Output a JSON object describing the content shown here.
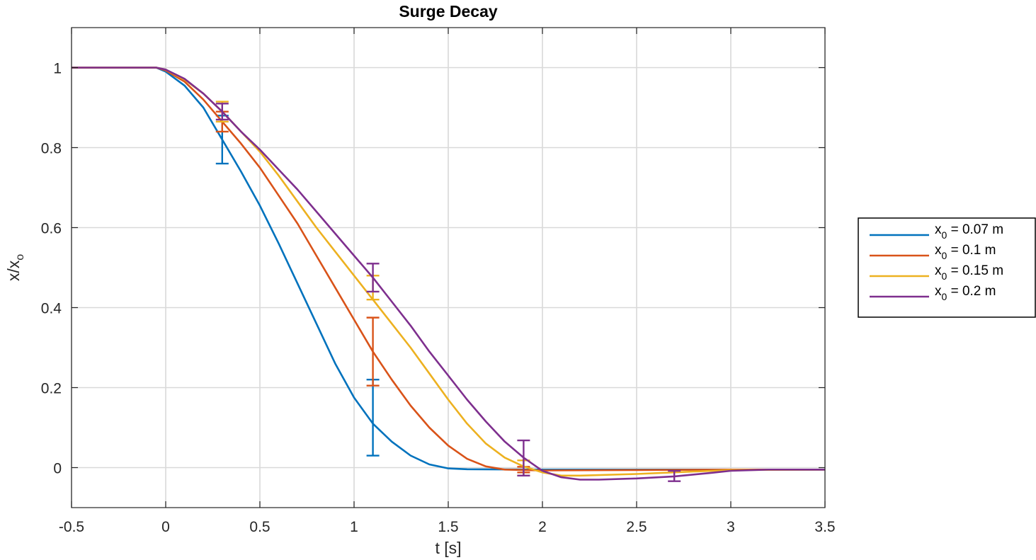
{
  "chart_data": {
    "type": "line",
    "title": "Surge Decay",
    "xlabel": "t [s]",
    "ylabel": {
      "base": "x/x",
      "sub": "o"
    },
    "xlim": [
      -0.5,
      3.5
    ],
    "ylim": [
      -0.1,
      1.1
    ],
    "xticks": [
      "-0.5",
      "0",
      "0.5",
      "1",
      "1.5",
      "2",
      "2.5",
      "3",
      "3.5"
    ],
    "yticks": [
      "0",
      "0.2",
      "0.4",
      "0.6",
      "0.8",
      "1"
    ],
    "grid": true,
    "legend_placement": "outside-right",
    "series": [
      {
        "name": {
          "base": "x",
          "sub": "0",
          "rest": " = 0.07 m"
        },
        "color": "#0072BD",
        "points": [
          [
            -0.5,
            1
          ],
          [
            -0.05,
            1
          ],
          [
            0,
            0.99
          ],
          [
            0.1,
            0.955
          ],
          [
            0.2,
            0.9
          ],
          [
            0.3,
            0.82
          ],
          [
            0.4,
            0.74
          ],
          [
            0.5,
            0.655
          ],
          [
            0.6,
            0.56
          ],
          [
            0.7,
            0.46
          ],
          [
            0.8,
            0.36
          ],
          [
            0.9,
            0.26
          ],
          [
            1.0,
            0.175
          ],
          [
            1.1,
            0.11
          ],
          [
            1.2,
            0.065
          ],
          [
            1.3,
            0.03
          ],
          [
            1.4,
            0.008
          ],
          [
            1.5,
            -0.002
          ],
          [
            1.6,
            -0.004
          ],
          [
            2.0,
            -0.005
          ],
          [
            3.0,
            -0.005
          ],
          [
            3.5,
            -0.005
          ]
        ],
        "errorbars": [
          {
            "x": 0.3,
            "lo": 0.76,
            "hi": 0.88
          },
          {
            "x": 1.1,
            "lo": 0.03,
            "hi": 0.22
          }
        ]
      },
      {
        "name": {
          "base": "x",
          "sub": "0",
          "rest": " = 0.1 m"
        },
        "color": "#D95319",
        "points": [
          [
            -0.5,
            1
          ],
          [
            -0.05,
            1
          ],
          [
            0,
            0.993
          ],
          [
            0.1,
            0.965
          ],
          [
            0.2,
            0.92
          ],
          [
            0.3,
            0.865
          ],
          [
            0.4,
            0.81
          ],
          [
            0.5,
            0.75
          ],
          [
            0.6,
            0.68
          ],
          [
            0.7,
            0.61
          ],
          [
            0.8,
            0.53
          ],
          [
            0.9,
            0.45
          ],
          [
            1.0,
            0.37
          ],
          [
            1.1,
            0.29
          ],
          [
            1.2,
            0.22
          ],
          [
            1.3,
            0.155
          ],
          [
            1.4,
            0.1
          ],
          [
            1.5,
            0.055
          ],
          [
            1.6,
            0.022
          ],
          [
            1.7,
            0.003
          ],
          [
            1.8,
            -0.005
          ],
          [
            2.0,
            -0.007
          ],
          [
            2.5,
            -0.006
          ],
          [
            3.0,
            -0.005
          ],
          [
            3.5,
            -0.005
          ]
        ],
        "errorbars": [
          {
            "x": 0.3,
            "lo": 0.84,
            "hi": 0.89
          },
          {
            "x": 1.1,
            "lo": 0.205,
            "hi": 0.375
          },
          {
            "x": 1.9,
            "lo": -0.012,
            "hi": 0.002
          }
        ]
      },
      {
        "name": {
          "base": "x",
          "sub": "0",
          "rest": " = 0.15 m"
        },
        "color": "#EDB120",
        "points": [
          [
            -0.5,
            1
          ],
          [
            -0.05,
            1
          ],
          [
            0,
            0.995
          ],
          [
            0.1,
            0.97
          ],
          [
            0.2,
            0.935
          ],
          [
            0.3,
            0.89
          ],
          [
            0.4,
            0.84
          ],
          [
            0.5,
            0.79
          ],
          [
            0.6,
            0.73
          ],
          [
            0.7,
            0.665
          ],
          [
            0.8,
            0.6
          ],
          [
            0.9,
            0.54
          ],
          [
            1.0,
            0.48
          ],
          [
            1.1,
            0.42
          ],
          [
            1.2,
            0.36
          ],
          [
            1.3,
            0.3
          ],
          [
            1.4,
            0.235
          ],
          [
            1.5,
            0.17
          ],
          [
            1.6,
            0.11
          ],
          [
            1.7,
            0.06
          ],
          [
            1.8,
            0.025
          ],
          [
            1.9,
            0.003
          ],
          [
            2.0,
            -0.012
          ],
          [
            2.1,
            -0.02
          ],
          [
            2.2,
            -0.02
          ],
          [
            2.5,
            -0.016
          ],
          [
            2.8,
            -0.01
          ],
          [
            3.0,
            -0.006
          ],
          [
            3.5,
            -0.005
          ]
        ],
        "errorbars": [
          {
            "x": 0.3,
            "lo": 0.865,
            "hi": 0.915
          },
          {
            "x": 1.1,
            "lo": 0.42,
            "hi": 0.48
          },
          {
            "x": 1.9,
            "lo": -0.02,
            "hi": 0.018
          }
        ]
      },
      {
        "name": {
          "base": "x",
          "sub": "0",
          "rest": " = 0.2 m"
        },
        "color": "#7E2F8E",
        "points": [
          [
            -0.5,
            1
          ],
          [
            -0.05,
            1
          ],
          [
            0,
            0.995
          ],
          [
            0.1,
            0.972
          ],
          [
            0.2,
            0.935
          ],
          [
            0.3,
            0.89
          ],
          [
            0.4,
            0.84
          ],
          [
            0.5,
            0.795
          ],
          [
            0.6,
            0.745
          ],
          [
            0.7,
            0.695
          ],
          [
            0.8,
            0.64
          ],
          [
            0.9,
            0.585
          ],
          [
            1.0,
            0.53
          ],
          [
            1.1,
            0.475
          ],
          [
            1.2,
            0.415
          ],
          [
            1.3,
            0.355
          ],
          [
            1.4,
            0.29
          ],
          [
            1.5,
            0.23
          ],
          [
            1.6,
            0.17
          ],
          [
            1.7,
            0.115
          ],
          [
            1.8,
            0.065
          ],
          [
            1.9,
            0.025
          ],
          [
            2.0,
            -0.008
          ],
          [
            2.1,
            -0.024
          ],
          [
            2.2,
            -0.03
          ],
          [
            2.3,
            -0.03
          ],
          [
            2.5,
            -0.027
          ],
          [
            2.7,
            -0.022
          ],
          [
            2.9,
            -0.013
          ],
          [
            3.0,
            -0.008
          ],
          [
            3.2,
            -0.005
          ],
          [
            3.5,
            -0.005
          ]
        ],
        "errorbars": [
          {
            "x": 0.3,
            "lo": 0.87,
            "hi": 0.91
          },
          {
            "x": 1.1,
            "lo": 0.44,
            "hi": 0.51
          },
          {
            "x": 1.9,
            "lo": -0.02,
            "hi": 0.068
          },
          {
            "x": 2.7,
            "lo": -0.034,
            "hi": -0.008
          }
        ]
      }
    ]
  }
}
